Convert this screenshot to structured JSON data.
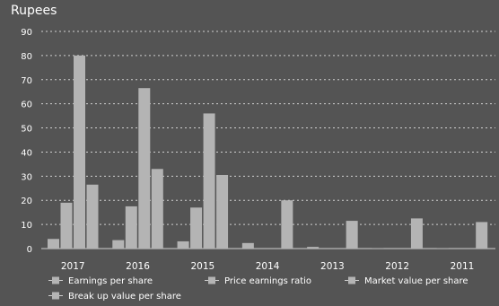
{
  "chart_data": {
    "type": "bar",
    "title": "",
    "ylabel": "Rupees",
    "xlabel": "",
    "ylim": [
      0,
      90
    ],
    "yticks": [
      0,
      10,
      20,
      30,
      40,
      50,
      60,
      70,
      80,
      90
    ],
    "grid": "horizontal-dotted",
    "legend_placement": "bottom",
    "categories": [
      "2017",
      "2016",
      "2015",
      "2014",
      "2013",
      "2012",
      "2011"
    ],
    "series": [
      {
        "name": "Earnings per share",
        "color": "#b4b4b4",
        "values": [
          4,
          3.5,
          3,
          2.3,
          0.7,
          0.2,
          0.2
        ]
      },
      {
        "name": "Price earnings ratio",
        "color": "#b4b4b4",
        "values": [
          19,
          17.5,
          17,
          0,
          0,
          0,
          0
        ]
      },
      {
        "name": "Market value per share",
        "color": "#b4b4b4",
        "values": [
          80,
          66.5,
          56,
          0,
          0,
          0,
          0
        ]
      },
      {
        "name": "Break up value per share",
        "color": "#b4b4b4",
        "values": [
          26.5,
          33,
          30.5,
          20,
          11.5,
          12.5,
          11
        ]
      }
    ]
  },
  "colors": {
    "background": "#545454",
    "bar": "#b4b4b4",
    "grid": "#cfcfcf",
    "text": "#ffffff"
  }
}
